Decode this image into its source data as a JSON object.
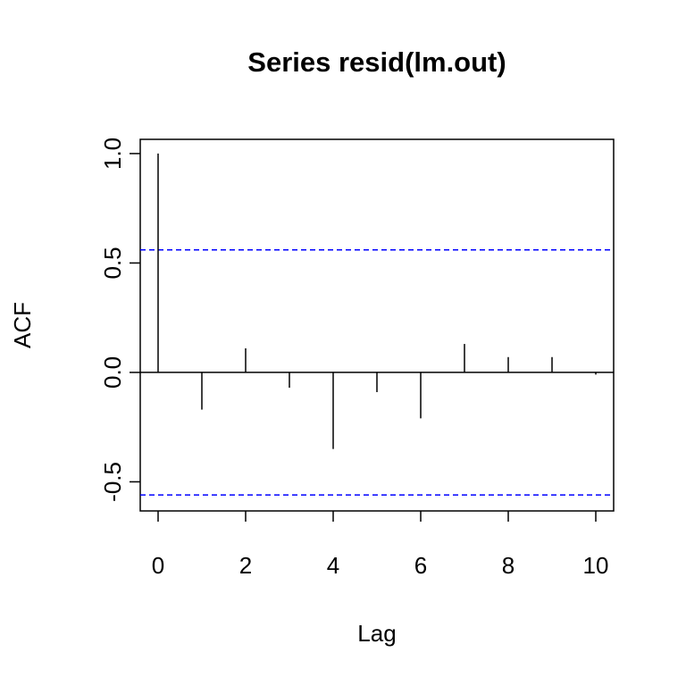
{
  "chart_data": {
    "type": "stem",
    "title": "Series  resid(lm.out)",
    "x_label": "Lag",
    "y_label": "ACF",
    "x": [
      0,
      1,
      2,
      3,
      4,
      5,
      6,
      7,
      8,
      9,
      10
    ],
    "values": [
      1.0,
      -0.17,
      0.11,
      -0.07,
      -0.35,
      -0.09,
      -0.21,
      0.13,
      0.07,
      0.07,
      -0.01
    ],
    "color": "#000000",
    "xlim": [
      -0.408,
      10.408
    ],
    "ylim": [
      -0.633,
      1.065
    ],
    "xticks": [
      0,
      2,
      4,
      6,
      8,
      10
    ],
    "yticks": [
      -0.5,
      {
        "value": 0,
        "label": "0.0"
      },
      0.5,
      {
        "value": 1,
        "label": "1.0"
      }
    ],
    "confidence_lines": [
      0.56,
      -0.56
    ],
    "confidence_color": "#0000ff"
  }
}
